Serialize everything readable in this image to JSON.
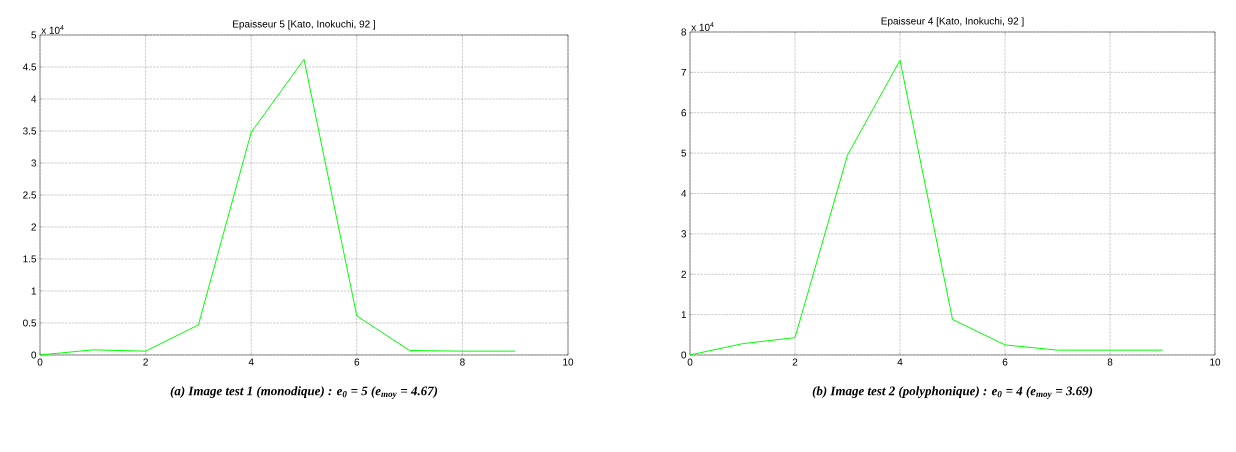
{
  "chart_data": [
    {
      "type": "line",
      "title": "Epaisseur 5  [Kato, Inokuchi, 92 ]",
      "x": [
        0,
        1,
        2,
        3,
        4,
        5,
        6,
        7,
        8,
        9
      ],
      "series": [
        {
          "color": "#00ff00",
          "values": [
            0,
            0.08,
            0.06,
            0.47,
            3.48,
            4.62,
            0.61,
            0.07,
            0.06,
            0.06
          ]
        }
      ],
      "xlim": [
        0,
        10
      ],
      "xticks": [
        0,
        2,
        4,
        6,
        8,
        10
      ],
      "ylim": [
        0,
        5
      ],
      "yticks": [
        0,
        0.5,
        1,
        1.5,
        2,
        2.5,
        3,
        3.5,
        4,
        4.5,
        5
      ],
      "grid": true,
      "annotations": [
        "x 10$^{4}$",
        "(a) Image test 1 (monodique) : e$_{0}$ = 5 (e$_{moy}$ = 4.67)"
      ]
    },
    {
      "type": "line",
      "title": "Epaisseur 4  [Kato, Inokuchi, 92 ]",
      "x": [
        0,
        1,
        2,
        3,
        4,
        5,
        6,
        7,
        8,
        9
      ],
      "series": [
        {
          "color": "#00ff00",
          "values": [
            0,
            0.28,
            0.43,
            4.95,
            7.3,
            0.88,
            0.25,
            0.12,
            0.12,
            0.12
          ]
        }
      ],
      "xlim": [
        0,
        10
      ],
      "xticks": [
        0,
        2,
        4,
        6,
        8,
        10
      ],
      "ylim": [
        0,
        8
      ],
      "yticks": [
        0,
        1,
        2,
        3,
        4,
        5,
        6,
        7,
        8
      ],
      "grid": true,
      "annotations": [
        "x 10$^{4}$",
        "(b) Image test 2 (polyphonique) : e$_{0}$ = 4 (e$_{moy}$ = 3.69)"
      ]
    }
  ]
}
